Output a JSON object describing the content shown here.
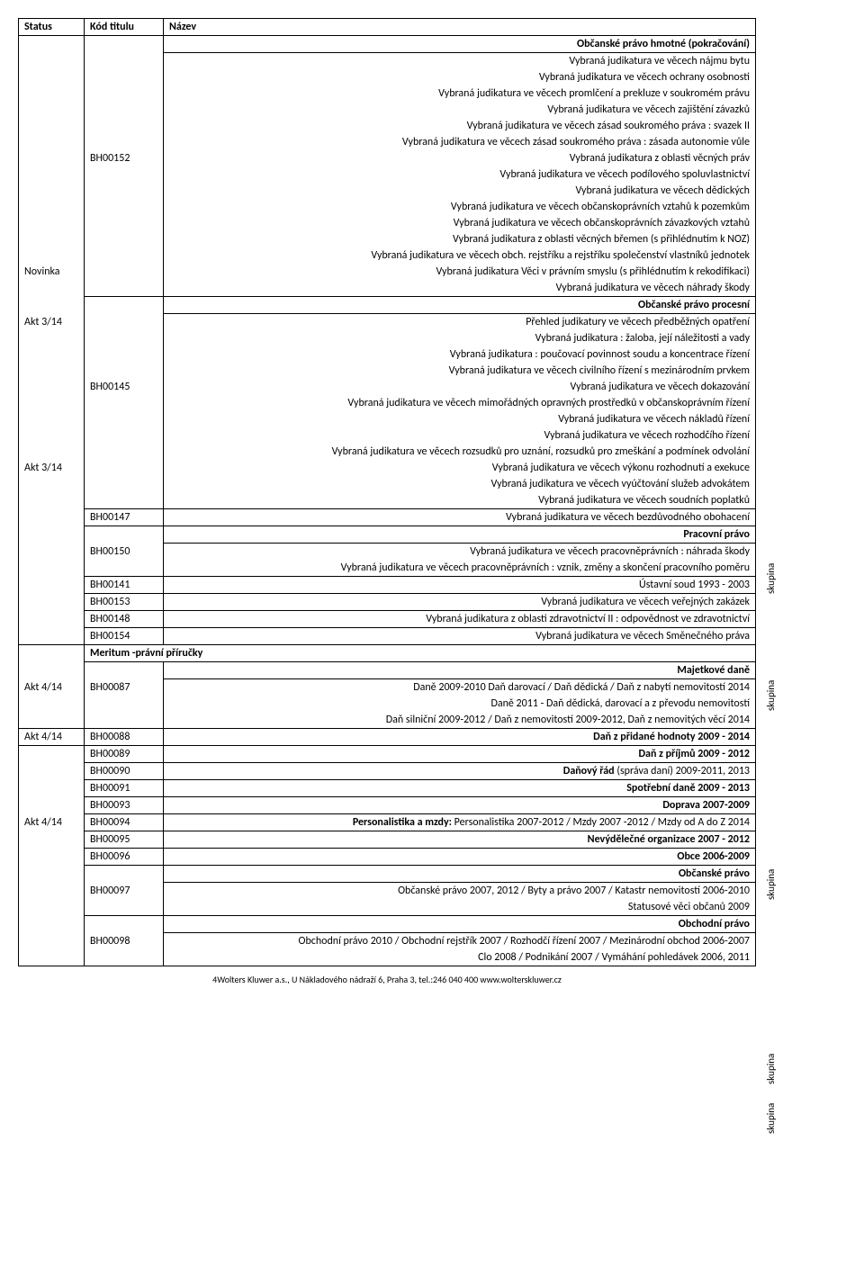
{
  "header": {
    "status": "Status",
    "code": "Kód titulu",
    "name": "Název"
  },
  "s1": {
    "title": "Občanské právo hmotné (pokračování)",
    "code": "BH00152",
    "status_row": "Novinka",
    "r1": "Vybraná judikatura ve věcech nájmu bytu",
    "r2": "Vybraná judikatura ve věcech ochrany osobnosti",
    "r3": "Vybraná judikatura ve věcech promlčení a prekluze v soukromém právu",
    "r4": "Vybraná judikatura ve věcech zajištění závazků",
    "r5": "Vybraná judikatura ve věcech zásad soukromého práva : svazek II",
    "r6": "Vybraná judikatura ve věcech zásad soukromého práva : zásada autonomie vůle",
    "r7": "Vybraná judikatura z oblasti věcných práv",
    "r8": "Vybraná judikatura ve věcech podílového spoluvlastnictví",
    "r9": "Vybraná judikatura ve věcech dědických",
    "r10": "Vybraná judikatura ve věcech občanskoprávních vztahů k pozemkům",
    "r11": "Vybraná judikatura ve věcech občanskoprávních závazkových vztahů",
    "r12": "Vybraná judikatura z oblasti věcných břemen (s přihlédnutím k NOZ)",
    "r13": "Vybraná judikatura ve věcech obch. rejstříku a rejstříku společenství vlastníků jednotek",
    "r14": "Vybraná judikatura Věci v právním smyslu (s přihlédnutím k rekodifikaci)",
    "r15": "Vybraná judikatura ve věcech náhrady škody"
  },
  "s2": {
    "title": "Občanské právo procesní",
    "code": "BH00145",
    "status_a": "Akt 3/14",
    "status_b": "Akt 3/14",
    "r1": "Přehled judikatury ve věcech předběžných opatření",
    "r2": "Vybraná judikatura : žaloba, její náležitosti a vady",
    "r3": "Vybraná judikatura : poučovací povinnost soudu a koncentrace řízení",
    "r4": "Vybraná judikatura ve věcech civilního řízení s mezinárodním prvkem",
    "r5": "Vybraná judikatura ve věcech dokazování",
    "r6": "Vybraná judikatura ve věcech mimořádných opravných prostředků v občanskoprávním řízení",
    "r7": "Vybraná judikatura ve věcech nákladů řízení",
    "r8": "Vybraná judikatura ve věcech rozhodčího řízení",
    "r9": "Vybraná judikatura ve věcech rozsudků pro uznání, rozsudků pro zmeškání a podmínek odvolání",
    "r10": "Vybraná judikatura ve věcech výkonu rozhodnutí a exekuce",
    "r11": "Vybraná judikatura ve věcech vyúčtování služeb advokátem",
    "r12": "Vybraná judikatura ve věcech soudních poplatků"
  },
  "s3": {
    "code147": "BH00147",
    "r147": "Vybraná judikatura ve věcech bezdůvodného obohacení",
    "title_prac": "Pracovní právo",
    "code150": "BH00150",
    "r150a": "Vybraná judikatura ve věcech pracovněprávních : náhrada škody",
    "r150b": "Vybraná judikatura ve věcech pracovněprávních : vznik, změny a skončení pracovního poměru",
    "code141": "BH00141",
    "r141": "Ústavní soud 1993 - 2003",
    "code153": "BH00153",
    "r153": "Vybraná judikatura ve věcech veřejných zakázek",
    "code148": "BH00148",
    "r148": "Vybraná judikatura z oblasti zdravotnictví II : odpovědnost ve zdravotnictví",
    "code154": "BH00154",
    "r154": "Vybraná judikatura ve věcech Směnečného práva"
  },
  "meritum": "Meritum -právní příručky",
  "s4": {
    "title": "Majetkové daně",
    "status": "Akt 4/14",
    "code87": "BH00087",
    "r87a": "Daně 2009-2010  Daň darovací  / Daň dědická / Daň z nabytí nemovitostí 2014",
    "r87b": "Daně 2011 - Daň dědická, darovací a z převodu nemovitostí",
    "r87c": "Daň silniční 2009-2012 / Daň z nemovitostí  2009-2012, Daň z nemovitých věcí 2014"
  },
  "s5": {
    "status88": "Akt 4/14",
    "code88": "BH00088",
    "r88": "Daň z přidané hodnoty 2009 - 2014",
    "code89": "BH00089",
    "r89": "Daň z příjmů 2009 - 2012",
    "code90": "BH00090",
    "r90": "Daňový řád (správa daní)  2009-2011, 2013",
    "code91": "BH00091",
    "r91": "Spotřební daně 2009 - 2013",
    "code93": "BH00093",
    "r93": "Doprava 2007-2009",
    "status94": "Akt 4/14",
    "code94": "BH00094",
    "r94": "Personalistika a mzdy: Personalistika 2007-2012 / Mzdy 2007 -2012 / Mzdy od A do Z 2014",
    "code95": "BH00095",
    "r95": "Nevýdělečné organizace 2007 - 2012",
    "code96": "BH00096",
    "r96": "Obce 2006-2009",
    "title_op": "Občanské právo",
    "code97": "BH00097",
    "r97a": "Občanské právo 2007, 2012 / Byty a právo 2007 / Katastr nemovitostí 2006-2010",
    "r97b": "Statusové věci občanů 2009",
    "title_obch": "Obchodní právo",
    "code98": "BH00098",
    "r98a": "Obchodní právo 2010 / Obchodní rejstřík 2007 / Rozhodčí řízení 2007 / Mezinárodní obchod 2006-2007",
    "r98b": "Clo 2008 / Podnikání 2007 /  Vymáhání pohledávek 2006, 2011"
  },
  "skupina": "skupina",
  "footnum": "4",
  "footer": "Wolters Kluwer a.s.,  U Nákladového nádraží 6, Praha 3, tel.:246 040 400 www.wolterskluwer.cz"
}
